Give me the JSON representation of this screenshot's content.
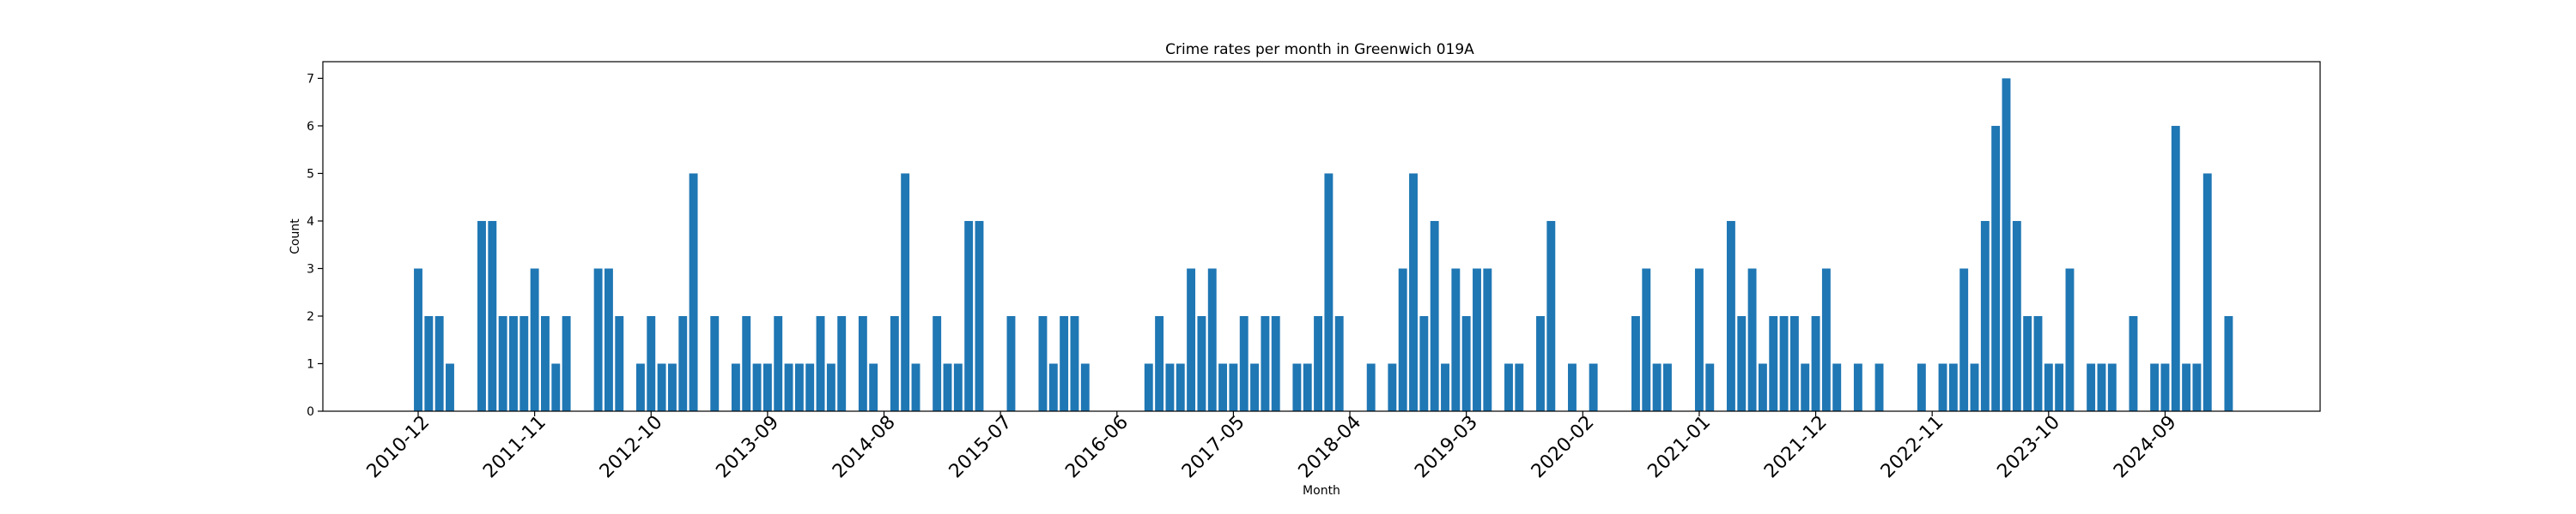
{
  "chart_data": {
    "type": "bar",
    "title": "Crime rates per month in Greenwich 019A",
    "xlabel": "Month",
    "ylabel": "Count",
    "ylim": [
      0,
      7.35
    ],
    "yticks": [
      0,
      1,
      2,
      3,
      4,
      5,
      6,
      7
    ],
    "grid": false,
    "bar_color": "#1f77b4",
    "xtick_labels": [
      "2010-12",
      "2011-11",
      "2012-10",
      "2013-09",
      "2014-08",
      "2015-07",
      "2016-06",
      "2017-05",
      "2018-04",
      "2019-03",
      "2020-02",
      "2021-01",
      "2021-12",
      "2022-11",
      "2023-10",
      "2024-09"
    ],
    "categories": [
      "2010-12",
      "2011-01",
      "2011-02",
      "2011-03",
      "2011-04",
      "2011-05",
      "2011-06",
      "2011-07",
      "2011-08",
      "2011-09",
      "2011-10",
      "2011-11",
      "2011-12",
      "2012-01",
      "2012-02",
      "2012-03",
      "2012-04",
      "2012-05",
      "2012-06",
      "2012-07",
      "2012-08",
      "2012-09",
      "2012-10",
      "2012-11",
      "2012-12",
      "2013-01",
      "2013-02",
      "2013-03",
      "2013-04",
      "2013-05",
      "2013-06",
      "2013-07",
      "2013-08",
      "2013-09",
      "2013-10",
      "2013-11",
      "2013-12",
      "2014-01",
      "2014-02",
      "2014-03",
      "2014-04",
      "2014-05",
      "2014-06",
      "2014-07",
      "2014-08",
      "2014-09",
      "2014-10",
      "2014-11",
      "2014-12",
      "2015-01",
      "2015-02",
      "2015-03",
      "2015-04",
      "2015-05",
      "2015-06",
      "2015-07",
      "2015-08",
      "2015-09",
      "2015-10",
      "2015-11",
      "2015-12",
      "2016-01",
      "2016-02",
      "2016-03",
      "2016-04",
      "2016-05",
      "2016-06",
      "2016-07",
      "2016-08",
      "2016-09",
      "2016-10",
      "2016-11",
      "2016-12",
      "2017-01",
      "2017-02",
      "2017-03",
      "2017-04",
      "2017-05",
      "2017-06",
      "2017-07",
      "2017-08",
      "2017-09",
      "2017-10",
      "2017-11",
      "2017-12",
      "2018-01",
      "2018-02",
      "2018-03",
      "2018-04",
      "2018-05",
      "2018-06",
      "2018-07",
      "2018-08",
      "2018-09",
      "2018-10",
      "2018-11",
      "2018-12",
      "2019-01",
      "2019-02",
      "2019-03",
      "2019-04",
      "2019-05",
      "2019-06",
      "2019-07",
      "2019-08",
      "2019-09",
      "2019-10",
      "2019-11",
      "2019-12",
      "2020-01",
      "2020-02",
      "2020-03",
      "2020-04",
      "2020-05",
      "2020-06",
      "2020-07",
      "2020-08",
      "2020-09",
      "2020-10",
      "2020-11",
      "2020-12",
      "2021-01",
      "2021-02",
      "2021-03",
      "2021-04",
      "2021-05",
      "2021-06",
      "2021-07",
      "2021-08",
      "2021-09",
      "2021-10",
      "2021-11",
      "2021-12",
      "2022-01",
      "2022-02",
      "2022-03",
      "2022-04",
      "2022-05",
      "2022-06",
      "2022-07",
      "2022-08",
      "2022-09",
      "2022-10",
      "2022-11",
      "2022-12",
      "2023-01",
      "2023-02",
      "2023-03",
      "2023-04",
      "2023-05",
      "2023-06",
      "2023-07",
      "2023-08",
      "2023-09",
      "2023-10",
      "2023-11",
      "2023-12",
      "2024-01",
      "2024-02",
      "2024-03",
      "2024-04",
      "2024-05",
      "2024-06",
      "2024-07",
      "2024-08",
      "2024-09",
      "2024-10",
      "2024-11",
      "2024-12",
      "2025-01",
      "2025-02",
      "2025-03",
      "2025-04",
      "2025-05",
      "2025-06",
      "2025-07",
      "2025-08",
      "2025-09",
      "2025-10",
      "2025-11",
      "2025-12",
      "2026-01",
      "2026-02",
      "2026-03",
      "2026-04",
      "2026-05",
      "2026-06",
      "2026-07",
      "2026-08"
    ],
    "values": [
      3,
      2,
      2,
      1,
      0,
      0,
      4,
      4,
      2,
      2,
      2,
      3,
      2,
      1,
      2,
      0,
      0,
      3,
      3,
      2,
      0,
      1,
      2,
      1,
      1,
      2,
      5,
      0,
      2,
      0,
      1,
      2,
      1,
      1,
      2,
      1,
      1,
      1,
      2,
      1,
      2,
      0,
      2,
      1,
      0,
      2,
      5,
      1,
      0,
      2,
      1,
      1,
      4,
      4,
      0,
      0,
      2,
      0,
      0,
      2,
      1,
      2,
      2,
      1,
      0,
      0,
      0,
      0,
      0,
      1,
      2,
      1,
      1,
      3,
      2,
      3,
      1,
      1,
      2,
      1,
      2,
      2,
      0,
      1,
      1,
      2,
      5,
      2,
      0,
      0,
      1,
      0,
      1,
      3,
      5,
      2,
      4,
      1,
      3,
      2,
      3,
      3,
      0,
      1,
      1,
      0,
      2,
      4,
      0,
      1,
      0,
      1,
      0,
      0,
      0,
      2,
      3,
      1,
      1,
      0,
      0,
      3,
      1,
      0,
      4,
      2,
      3,
      1,
      2,
      2,
      2,
      1,
      2,
      3,
      1,
      0,
      1,
      0,
      1,
      0,
      0,
      0,
      1,
      0,
      1,
      1,
      3,
      1,
      4,
      6,
      7,
      4,
      2,
      2,
      1,
      1,
      3,
      0,
      1,
      1,
      1,
      0,
      2,
      0,
      1,
      1,
      6,
      1,
      1,
      5,
      0,
      2,
      0,
      0,
      0,
      0,
      0,
      0,
      0,
      0,
      0,
      0,
      0,
      0,
      0,
      0,
      0,
      0,
      0
    ]
  }
}
